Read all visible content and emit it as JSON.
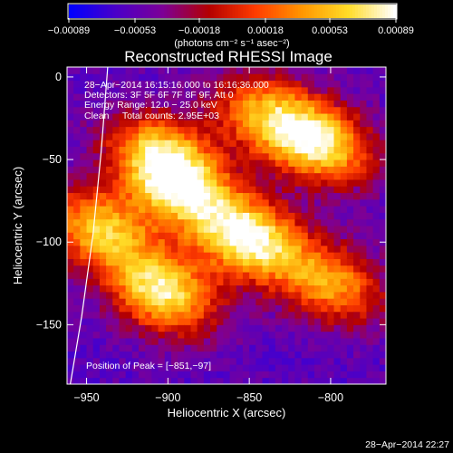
{
  "chart_data": {
    "type": "heatmap",
    "title": "Reconstructed RHESSI Image",
    "xlabel": "Heliocentric X (arcsec)",
    "ylabel": "Heliocentric Y (arcsec)",
    "xlim": [
      -962,
      -766
    ],
    "ylim": [
      -186,
      6
    ],
    "x_ticks": [
      {
        "value": -950,
        "label": "−950"
      },
      {
        "value": -900,
        "label": "−900"
      },
      {
        "value": -850,
        "label": "−850"
      },
      {
        "value": -800,
        "label": "−800"
      }
    ],
    "y_ticks": [
      {
        "value": 0,
        "label": "0"
      },
      {
        "value": -50,
        "label": "−50"
      },
      {
        "value": -100,
        "label": "−100"
      },
      {
        "value": -150,
        "label": "−150"
      }
    ],
    "colorbar": {
      "range": [
        -0.00089,
        0.00089
      ],
      "ticks": [
        {
          "value": -0.00089,
          "label": "−0.00089"
        },
        {
          "value": -0.00053,
          "label": "−0.00053"
        },
        {
          "value": -0.00018,
          "label": "−0.00018"
        },
        {
          "value": 0.00018,
          "label": "0.00018"
        },
        {
          "value": 0.00053,
          "label": "0.00053"
        },
        {
          "value": 0.00089,
          "label": "0.00089"
        }
      ],
      "unit_label": "(photons cm⁻² s⁻¹ asec⁻²)",
      "colors": [
        "#0000ff",
        "#4b00c8",
        "#7d0096",
        "#b40000",
        "#ff3c00",
        "#ff9600",
        "#ffdc28",
        "#ffffff"
      ]
    },
    "annotations": [
      "28−Apr−2014 16:15:16.000 to 16:16:36.000",
      "Detectors: 3F 5F 6F 7F 8F 9F, Att 0",
      "Energy Range: 12.0 − 25.0 keV",
      "Clean     Total counts: 2.95E+03"
    ],
    "peak": {
      "label": "Position of Peak = [−851,−97]",
      "x": -851,
      "y": -97
    },
    "sources": [
      {
        "x": -851,
        "y": -97,
        "peak": 0.00089
      },
      {
        "x": -807,
        "y": -40,
        "peak": 0.0007
      },
      {
        "x": -903,
        "y": -130,
        "peak": 0.00075
      },
      {
        "x": -893,
        "y": -67,
        "peak": 0.0006
      },
      {
        "x": -942,
        "y": -92,
        "peak": 0.00055
      },
      {
        "x": -840,
        "y": -22,
        "peak": 0.00035
      },
      {
        "x": -905,
        "y": -45,
        "peak": 0.0004
      },
      {
        "x": -800,
        "y": -125,
        "peak": 0.0004
      }
    ],
    "limb_curve": [
      {
        "x": -937,
        "y": 6
      },
      {
        "x": -941,
        "y": -45
      },
      {
        "x": -946,
        "y": -95
      },
      {
        "x": -953,
        "y": -145
      },
      {
        "x": -960,
        "y": -186
      }
    ]
  },
  "footer": {
    "timestamp": "28−Apr−2014 22:27"
  }
}
